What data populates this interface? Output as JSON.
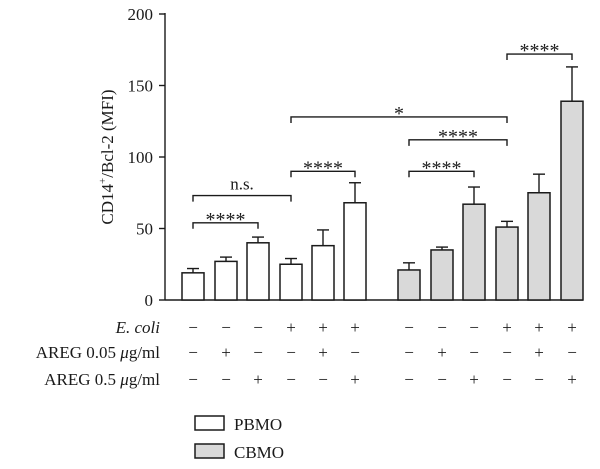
{
  "chart_data": {
    "type": "bar",
    "ylabel": "CD14⁺/Bcl-2 (MFI)",
    "ylabel_base": "CD14",
    "ylabel_sup": "+",
    "ylabel_rest": "/Bcl-2 (MFI)",
    "ylim": [
      0,
      200
    ],
    "yticks": [
      0,
      50,
      100,
      150,
      200
    ],
    "series": [
      {
        "name": "PBMO",
        "color": "#ffffff",
        "values": [
          19,
          27,
          40,
          25,
          38,
          68
        ],
        "errors": [
          3,
          3,
          4,
          4,
          11,
          14
        ]
      },
      {
        "name": "CBMO",
        "color": "#d9d9d9",
        "values": [
          21,
          35,
          67,
          51,
          75,
          139
        ],
        "errors": [
          5,
          2,
          12,
          4,
          13,
          24
        ]
      }
    ],
    "condition_rows": [
      {
        "label_main": "E. coli",
        "label_unit": "",
        "italic": true,
        "marks": [
          "−",
          "−",
          "−",
          "+",
          "+",
          "+",
          "−",
          "−",
          "−",
          "+",
          "+",
          "+"
        ]
      },
      {
        "label_main": "AREG 0.05 ",
        "label_unit": "μg/ml",
        "italic": false,
        "marks": [
          "−",
          "+",
          "−",
          "−",
          "+",
          "−",
          "−",
          "+",
          "−",
          "−",
          "+",
          "−"
        ]
      },
      {
        "label_main": "AREG 0.5 ",
        "label_unit": "μg/ml",
        "italic": false,
        "marks": [
          "−",
          "−",
          "+",
          "−",
          "−",
          "+",
          "−",
          "−",
          "+",
          "−",
          "−",
          "+"
        ]
      }
    ],
    "significance": [
      {
        "label": "****",
        "from": 0,
        "to": 2,
        "y": 54
      },
      {
        "label": "n.s.",
        "from": 0,
        "to": 3,
        "y": 73
      },
      {
        "label": "****",
        "from": 3,
        "to": 5,
        "y": 90
      },
      {
        "label": "*",
        "from": 3,
        "to": 9,
        "y": 128
      },
      {
        "label": "****",
        "from": 6,
        "to": 8,
        "y": 90
      },
      {
        "label": "****",
        "from": 6,
        "to": 9,
        "y": 112
      },
      {
        "label": "****",
        "from": 9,
        "to": 11,
        "y": 172
      }
    ],
    "legend": {
      "position": "bottom-center"
    }
  }
}
